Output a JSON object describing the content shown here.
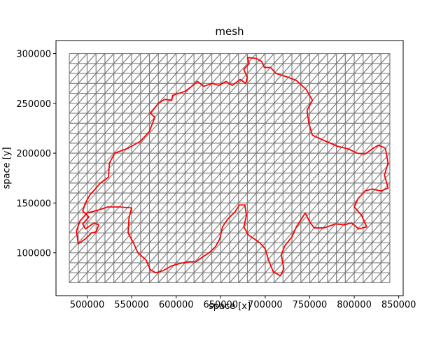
{
  "chart_data": {
    "type": "line",
    "title": "mesh",
    "xlabel": "space [x]",
    "ylabel": "space [y]",
    "xlim": [
      465000,
      855000
    ],
    "ylim": [
      57000,
      313000
    ],
    "x_ticks": [
      500000,
      550000,
      600000,
      650000,
      700000,
      750000,
      800000,
      850000
    ],
    "y_ticks": [
      100000,
      150000,
      200000,
      250000,
      300000
    ],
    "x_tick_labels": [
      "500000",
      "550000",
      "600000",
      "650000",
      "700000",
      "750000",
      "800000",
      "850000"
    ],
    "y_tick_labels": [
      "100000",
      "150000",
      "200000",
      "250000",
      "300000"
    ],
    "grid": false,
    "mesh": {
      "x_range": [
        480000,
        840000
      ],
      "y_range": [
        70000,
        300000
      ],
      "x_divisions": 36,
      "y_divisions": 23,
      "color": "#808080"
    },
    "series": [
      {
        "color": "#ff0000",
        "points": [
          [
            490000,
            109000
          ],
          [
            498000,
            114000
          ],
          [
            505000,
            120000
          ],
          [
            510000,
            121000
          ],
          [
            513000,
            128000
          ],
          [
            508000,
            130000
          ],
          [
            498000,
            124000
          ],
          [
            495000,
            129000
          ],
          [
            502000,
            136000
          ],
          [
            495000,
            142000
          ],
          [
            498000,
            150000
          ],
          [
            503000,
            158000
          ],
          [
            515000,
            170000
          ],
          [
            524000,
            176000
          ],
          [
            525000,
            190000
          ],
          [
            531000,
            200000
          ],
          [
            546000,
            205000
          ],
          [
            560000,
            212000
          ],
          [
            570000,
            222000
          ],
          [
            576000,
            236000
          ],
          [
            571000,
            240000
          ],
          [
            580000,
            250000
          ],
          [
            587000,
            254000
          ],
          [
            595000,
            253000
          ],
          [
            596000,
            258000
          ],
          [
            603000,
            260000
          ],
          [
            610000,
            262000
          ],
          [
            616000,
            266000
          ],
          [
            624000,
            272000
          ],
          [
            631000,
            267000
          ],
          [
            640000,
            270000
          ],
          [
            648000,
            268000
          ],
          [
            656000,
            272000
          ],
          [
            663000,
            268000
          ],
          [
            672000,
            274000
          ],
          [
            678000,
            270000
          ],
          [
            680000,
            276000
          ],
          [
            676000,
            284000
          ],
          [
            682000,
            290000
          ],
          [
            680000,
            296000
          ],
          [
            690000,
            295000
          ],
          [
            696000,
            292000
          ],
          [
            699000,
            286000
          ],
          [
            706000,
            286000
          ],
          [
            712000,
            280000
          ],
          [
            723000,
            277000
          ],
          [
            735000,
            273000
          ],
          [
            746000,
            264000
          ],
          [
            753000,
            253000
          ],
          [
            747000,
            243000
          ],
          [
            749000,
            230000
          ],
          [
            753000,
            218000
          ],
          [
            768000,
            212000
          ],
          [
            781000,
            207000
          ],
          [
            794000,
            204000
          ],
          [
            803000,
            200000
          ],
          [
            812000,
            199000
          ],
          [
            820000,
            204000
          ],
          [
            827000,
            208000
          ],
          [
            835000,
            205000
          ],
          [
            838000,
            190000
          ],
          [
            834000,
            178000
          ],
          [
            838000,
            165000
          ],
          [
            830000,
            162000
          ],
          [
            820000,
            164000
          ],
          [
            812000,
            162000
          ],
          [
            804000,
            154000
          ],
          [
            800000,
            146000
          ],
          [
            808000,
            138000
          ],
          [
            814000,
            126000
          ],
          [
            805000,
            124000
          ],
          [
            797000,
            130000
          ],
          [
            789000,
            128000
          ],
          [
            779000,
            129000
          ],
          [
            766000,
            125000
          ],
          [
            755000,
            125000
          ],
          [
            750000,
            131000
          ],
          [
            745000,
            140000
          ],
          [
            740000,
            133000
          ],
          [
            735000,
            126000
          ],
          [
            730000,
            116000
          ],
          [
            722000,
            107000
          ],
          [
            718000,
            98000
          ],
          [
            721000,
            84000
          ],
          [
            717000,
            77000
          ],
          [
            709000,
            81000
          ],
          [
            704000,
            92000
          ],
          [
            700000,
            104000
          ],
          [
            694000,
            110000
          ],
          [
            681000,
            118000
          ],
          [
            676000,
            126000
          ],
          [
            679000,
            138000
          ],
          [
            677000,
            148000
          ],
          [
            671000,
            148000
          ],
          [
            666000,
            141000
          ],
          [
            658000,
            134000
          ],
          [
            652000,
            126000
          ],
          [
            649000,
            114000
          ],
          [
            644000,
            106000
          ],
          [
            637000,
            100000
          ],
          [
            630000,
            96000
          ],
          [
            622000,
            91000
          ],
          [
            614000,
            91000
          ],
          [
            603000,
            89000
          ],
          [
            595000,
            87000
          ],
          [
            585000,
            82000
          ],
          [
            577000,
            80000
          ],
          [
            571000,
            83000
          ],
          [
            566000,
            93000
          ],
          [
            557000,
            100000
          ],
          [
            552000,
            110000
          ],
          [
            546000,
            120000
          ],
          [
            547000,
            135000
          ],
          [
            550000,
            145000
          ],
          [
            537000,
            146000
          ],
          [
            523000,
            146000
          ],
          [
            513000,
            143000
          ],
          [
            500000,
            140000
          ],
          [
            492000,
            132000
          ],
          [
            488000,
            122000
          ],
          [
            490000,
            109000
          ]
        ]
      }
    ]
  }
}
